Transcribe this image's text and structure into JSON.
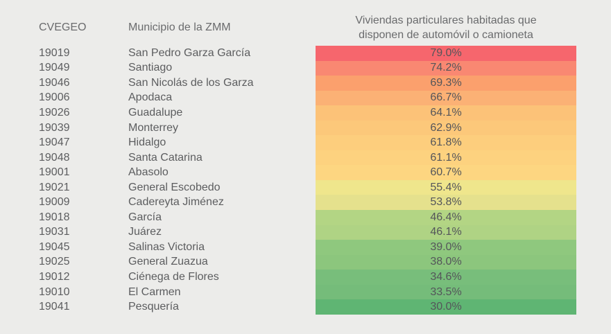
{
  "page": {
    "background": "#ECECEA",
    "text_color": "#5C5D5F",
    "header_text_color": "#6A6B6D",
    "value_text_color": "#54555A"
  },
  "header": {
    "cvegeo": "CVEGEO",
    "municipio": "Municipio de la ZMM",
    "values_line1": "Viviendas particulares habitadas que",
    "values_line2": "disponen de automóvil o camioneta"
  },
  "chart_data": {
    "type": "table",
    "title": "Viviendas particulares habitadas que disponen de automóvil o camioneta",
    "columns": [
      "CVEGEO",
      "Municipio de la ZMM",
      "Viviendas particulares habitadas que disponen de automóvil o camioneta"
    ],
    "value_unit": "%",
    "value_range": [
      30.0,
      79.0
    ],
    "color_scale": {
      "description": "heatmap on value column: high=red, mid=yellow/orange, low=green",
      "high": "#F6666D",
      "mid": "#FDD681",
      "low": "#5FB573"
    },
    "rows": [
      {
        "cvegeo": "19019",
        "municipio": "San Pedro Garza García",
        "value": 79.0,
        "label": "79.0%",
        "color": "#F6666D"
      },
      {
        "cvegeo": "19049",
        "municipio": "Santiago",
        "value": 74.2,
        "label": "74.2%",
        "color": "#F98872"
      },
      {
        "cvegeo": "19046",
        "municipio": "San Nicolás de los Garza",
        "value": 69.3,
        "label": "69.3%",
        "color": "#FBA06D"
      },
      {
        "cvegeo": "19006",
        "municipio": "Apodaca",
        "value": 66.7,
        "label": "66.7%",
        "color": "#FBB175"
      },
      {
        "cvegeo": "19026",
        "municipio": "Guadalupe",
        "value": 64.1,
        "label": "64.1%",
        "color": "#FCC278"
      },
      {
        "cvegeo": "19039",
        "municipio": "Monterrey",
        "value": 62.9,
        "label": "62.9%",
        "color": "#FCC87A"
      },
      {
        "cvegeo": "19047",
        "municipio": "Hidalgo",
        "value": 61.8,
        "label": "61.8%",
        "color": "#FDCE7D"
      },
      {
        "cvegeo": "19048",
        "municipio": "Santa Catarina",
        "value": 61.1,
        "label": "61.1%",
        "color": "#FDD27F"
      },
      {
        "cvegeo": "19001",
        "municipio": "Abasolo",
        "value": 60.7,
        "label": "60.7%",
        "color": "#FDD681"
      },
      {
        "cvegeo": "19021",
        "municipio": "General Escobedo",
        "value": 55.4,
        "label": "55.4%",
        "color": "#EFE68C"
      },
      {
        "cvegeo": "19009",
        "municipio": "Cadereyta Jiménez",
        "value": 53.8,
        "label": "53.8%",
        "color": "#E5E18D"
      },
      {
        "cvegeo": "19018",
        "municipio": "García",
        "value": 46.4,
        "label": "46.4%",
        "color": "#B3D584"
      },
      {
        "cvegeo": "19031",
        "municipio": "Juárez",
        "value": 46.1,
        "label": "46.1%",
        "color": "#AFD384"
      },
      {
        "cvegeo": "19045",
        "municipio": "Salinas Victoria",
        "value": 39.0,
        "label": "39.0%",
        "color": "#8FC87E"
      },
      {
        "cvegeo": "19025",
        "municipio": "General Zuazua",
        "value": 38.0,
        "label": "38.0%",
        "color": "#8CC67D"
      },
      {
        "cvegeo": "19012",
        "municipio": "Ciénega de Flores",
        "value": 34.6,
        "label": "34.6%",
        "color": "#78BE7B"
      },
      {
        "cvegeo": "19010",
        "municipio": "El Carmen",
        "value": 33.5,
        "label": "33.5%",
        "color": "#75BC7A"
      },
      {
        "cvegeo": "19041",
        "municipio": "Pesquería",
        "value": 30.0,
        "label": "30.0%",
        "color": "#5FB573"
      }
    ]
  }
}
